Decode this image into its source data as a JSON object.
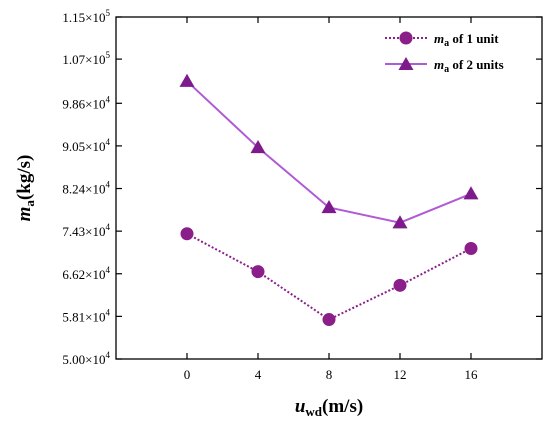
{
  "chart_data": {
    "type": "line",
    "x": [
      0,
      4,
      8,
      12,
      16
    ],
    "xlim": [
      -4,
      20
    ],
    "ylim": [
      50000,
      115000
    ],
    "xticks": [
      "0",
      "4",
      "8",
      "12",
      "16"
    ],
    "yticks": [
      {
        "mantissa": "5.00",
        "exp": "4"
      },
      {
        "mantissa": "5.81",
        "exp": "4"
      },
      {
        "mantissa": "6.62",
        "exp": "4"
      },
      {
        "mantissa": "7.43",
        "exp": "4"
      },
      {
        "mantissa": "8.24",
        "exp": "4"
      },
      {
        "mantissa": "9.05",
        "exp": "4"
      },
      {
        "mantissa": "9.86",
        "exp": "4"
      },
      {
        "mantissa": "1.07",
        "exp": "5"
      },
      {
        "mantissa": "1.15",
        "exp": "5"
      }
    ],
    "ytick_values": [
      50000,
      58100,
      66200,
      74300,
      82400,
      90500,
      98600,
      107000,
      115000
    ],
    "xlabel": {
      "main": "u",
      "sub": "wd",
      "unit": "(m/s)"
    },
    "ylabel": {
      "main": "m",
      "sub": "a",
      "unit": "(kg/s)"
    },
    "legend_position": "top-right",
    "grid": false,
    "series": [
      {
        "legend": {
          "main": "m",
          "sub": "a",
          "rest": " of 1 unit"
        },
        "values": [
          73800,
          66600,
          57500,
          64000,
          71000
        ],
        "marker": "circle",
        "line_style": "dotted",
        "color": "#8a1f8a"
      },
      {
        "legend": {
          "main": "m",
          "sub": "a",
          "rest": " of 2 units"
        },
        "values": [
          102800,
          90200,
          78800,
          75900,
          81400
        ],
        "marker": "triangle",
        "line_style": "solid",
        "color": "#b05ad6",
        "marker_color": "#7d1a8c"
      }
    ]
  }
}
